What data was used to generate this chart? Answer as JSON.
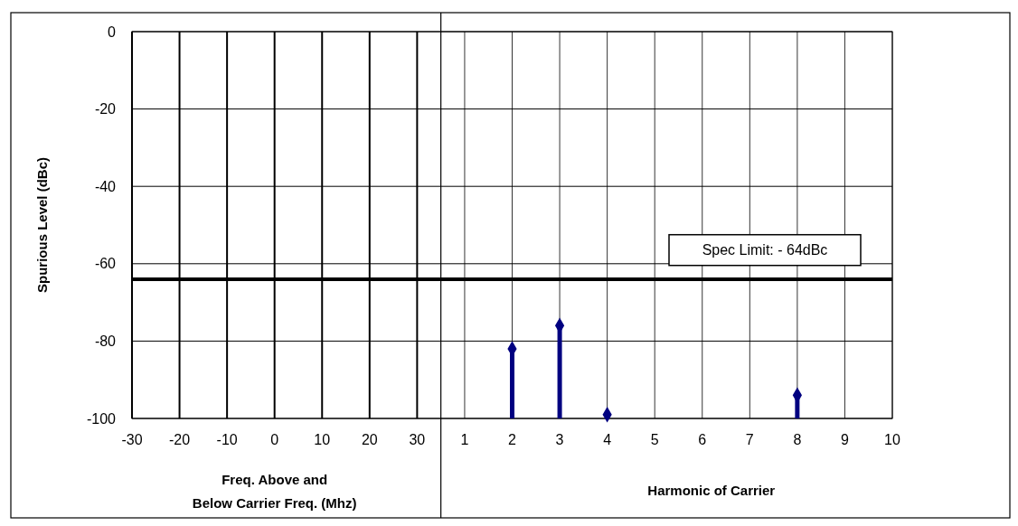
{
  "chart_data": {
    "type": "scatter",
    "categories": [
      "-30",
      "-20",
      "-10",
      "0",
      "10",
      "20",
      "30",
      "1",
      "2",
      "3",
      "4",
      "5",
      "6",
      "7",
      "8",
      "9",
      "10"
    ],
    "series": [
      {
        "color": "#000080",
        "values": [
          null,
          null,
          null,
          null,
          null,
          null,
          null,
          null,
          -82,
          -76,
          -99,
          null,
          null,
          null,
          -94,
          null,
          null
        ],
        "errors": [
          null,
          null,
          null,
          null,
          null,
          null,
          null,
          null,
          [
            -100,
            -82
          ],
          [
            -100,
            -76
          ],
          [
            -100,
            -99
          ],
          null,
          null,
          null,
          [
            -100,
            -94
          ],
          null,
          null
        ]
      }
    ],
    "ylabel": "Spurious Level (dBc)",
    "xlabel": "Freq. Above and\nBelow Carrier Freq. (Mhz)",
    "annotations": [
      "Harmonic of Carrier"
    ],
    "ylim": [
      -100,
      0
    ],
    "yticks": [
      -100,
      -80,
      -60,
      -40,
      -20,
      0
    ],
    "ref_lines": [
      {
        "axis": "y",
        "value": -64,
        "label": "Spec Limit: - 64dBc",
        "color": "#000000"
      }
    ],
    "grid": true,
    "marker": "diamond"
  }
}
